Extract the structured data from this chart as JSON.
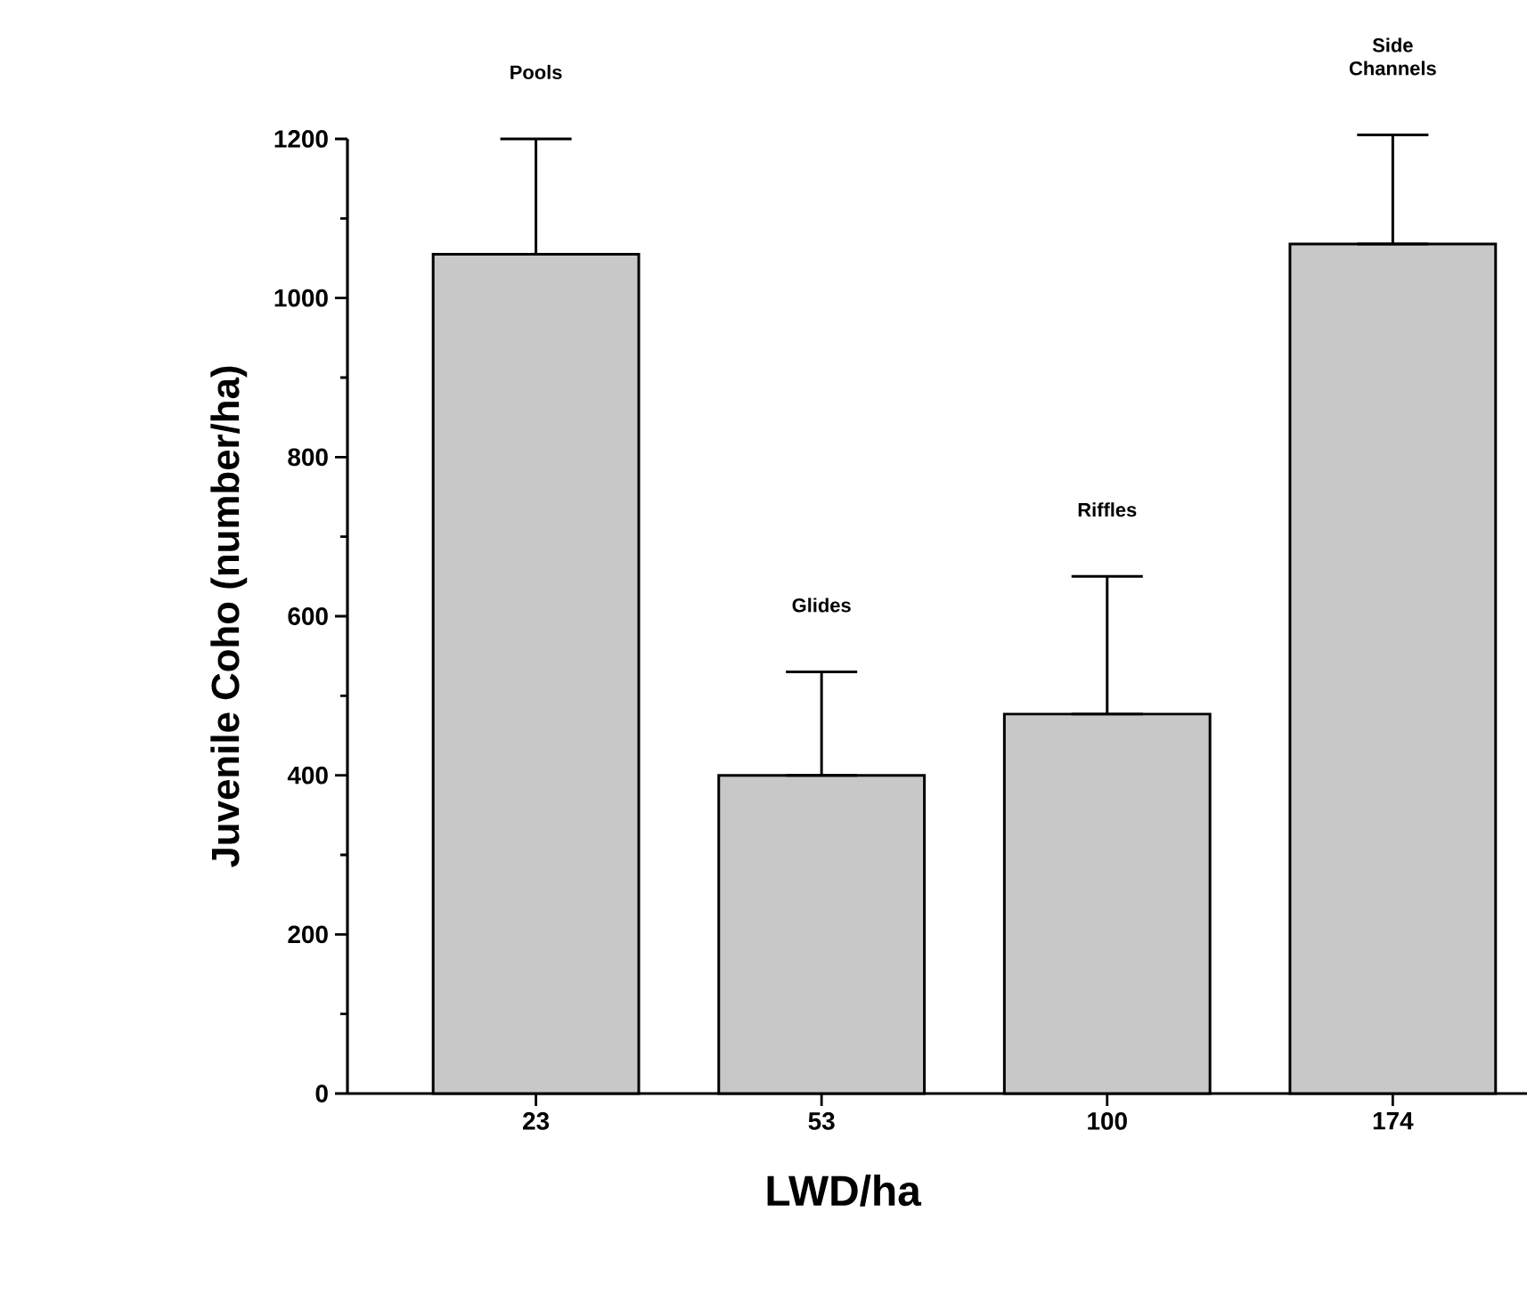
{
  "chart_data": {
    "type": "bar",
    "xlabel": "LWD/ha",
    "ylabel": "Juvenile Coho (number/ha)",
    "categories": [
      "23",
      "53",
      "100",
      "174"
    ],
    "values": [
      1055,
      400,
      477,
      1068
    ],
    "errors": [
      [
        1055,
        1200
      ],
      [
        400,
        530
      ],
      [
        477,
        650
      ],
      [
        1068,
        1205
      ]
    ],
    "color": "#c8c8c8",
    "ylim": [
      0,
      1200
    ],
    "yticks": [
      0,
      200,
      400,
      600,
      800,
      1000,
      1200
    ],
    "annotations": [
      "Pools",
      "Glides",
      "Riffles",
      "Side Channels"
    ]
  }
}
